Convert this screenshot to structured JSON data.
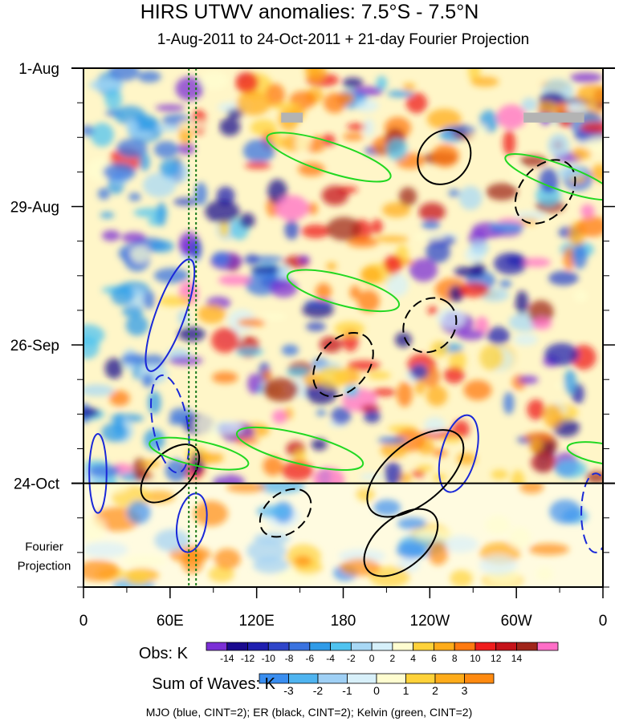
{
  "title": "HIRS UTWV anomalies: 7.5°S - 7.5°N",
  "subtitle": "1-Aug-2011 to 24-Oct-2011 + 21-day Fourier Projection",
  "chart_data": {
    "type": "heatmap",
    "title": "HIRS UTWV anomalies: 7.5°S - 7.5°N",
    "subtitle": "1-Aug-2011 to 24-Oct-2011 + 21-day Fourier Projection",
    "x_ticks": [
      "0",
      "60E",
      "120E",
      "180",
      "120W",
      "60W",
      "0"
    ],
    "x_tick_values": [
      0,
      60,
      120,
      180,
      240,
      300,
      360
    ],
    "xlim": [
      0,
      360
    ],
    "y_ticks": [
      "1-Aug",
      "29-Aug",
      "26-Sep",
      "24-Oct"
    ],
    "y_tick_values": [
      0,
      28,
      56,
      84
    ],
    "ylim": [
      0,
      105
    ],
    "y_reversed": true,
    "projection_label": [
      "Fourier",
      "Projection"
    ],
    "projection_start": "24-Oct",
    "reference_lines_lon": [
      73,
      78
    ],
    "obs_colorbar": {
      "label": "Obs: K",
      "levels": [
        -14,
        -12,
        -10,
        -8,
        -6,
        -4,
        -2,
        0,
        2,
        4,
        6,
        8,
        10,
        12,
        14
      ],
      "colors": [
        "#7b2fd6",
        "#1a0a8f",
        "#1f1fb0",
        "#2f45c9",
        "#3a73e0",
        "#2f9be8",
        "#4fc3f0",
        "#a8d8f5",
        "#d6f0fa",
        "#fffdd0",
        "#ffd23a",
        "#ffac1a",
        "#ff7a10",
        "#ef1d1d",
        "#c5131a",
        "#a0251a",
        "#ff6ec7"
      ]
    },
    "wave_colorbar": {
      "label": "Sum of Waves: K",
      "levels": [
        -3,
        -2,
        -1,
        0,
        1,
        2,
        3
      ],
      "colors": [
        "#3a8ef0",
        "#4fb4f0",
        "#9fd0f5",
        "#d8f0fa",
        "#fffdd0",
        "#ffd23a",
        "#ffac1a",
        "#ff8a10"
      ]
    },
    "contour_series": [
      {
        "name": "MJO",
        "color": "#1a28d8",
        "cint": 2
      },
      {
        "name": "ER",
        "color": "#000000",
        "cint": 2
      },
      {
        "name": "Kelvin",
        "color": "#22d822",
        "cint": 2
      }
    ],
    "colors": {
      "mjo": "#1a28d8",
      "er": "#000000",
      "kelvin": "#22d822",
      "ref_line": "#1a7a1a",
      "missing": "#b3b3b3"
    },
    "footnote": "MJO (blue, CINT=2); ER (black, CINT=2); Kelvin (green, CINT=2)"
  }
}
